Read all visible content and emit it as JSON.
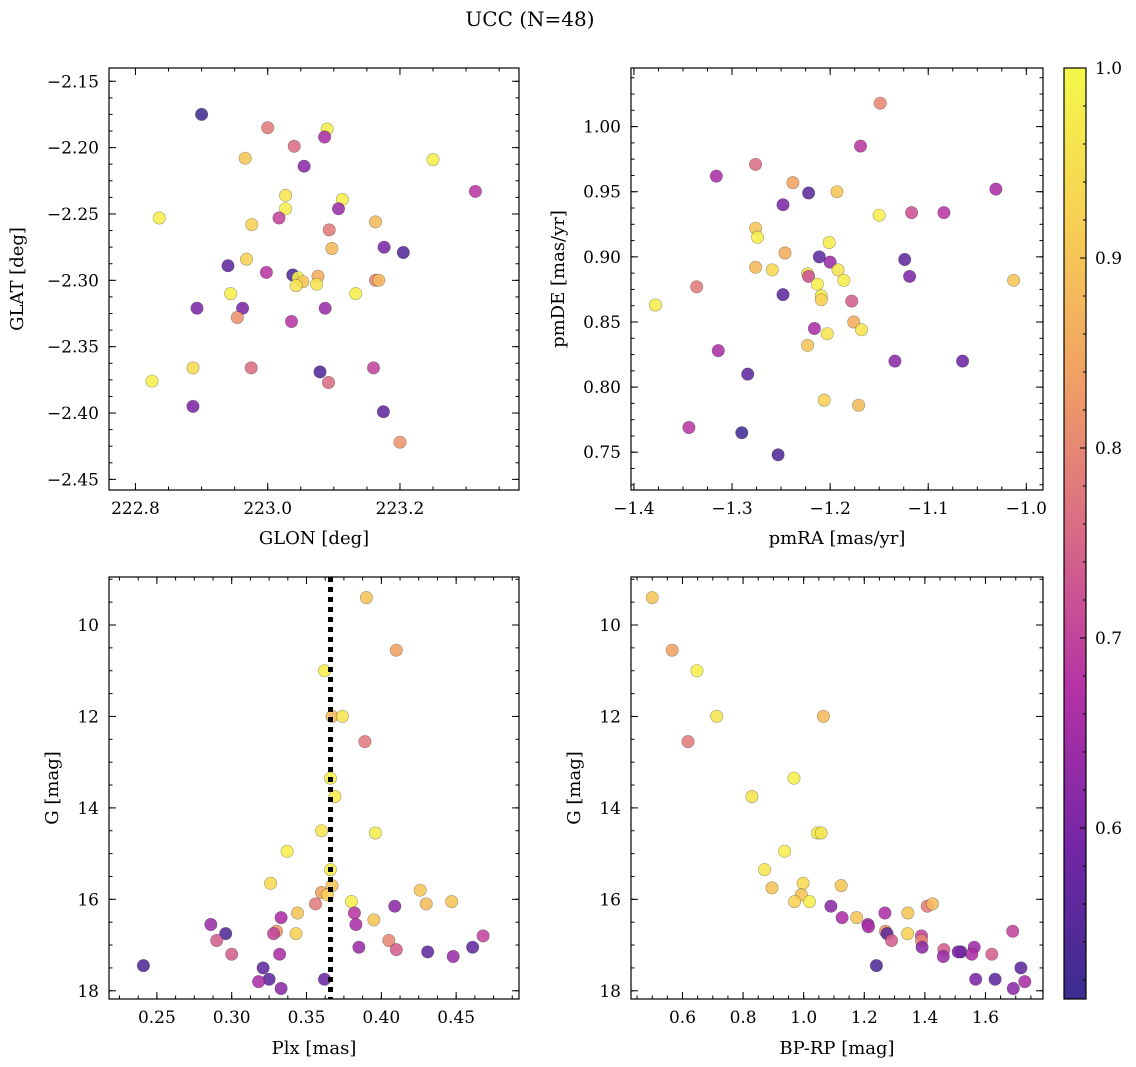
{
  "figure": {
    "title": "UCC (N=48)"
  },
  "colorbar": {
    "range": [
      0.51,
      1.0
    ],
    "ticks": [
      0.6,
      0.7,
      0.8,
      0.9,
      1.0
    ],
    "tick_labels": [
      "0.6",
      "0.7",
      "0.8",
      "0.9",
      "1.0"
    ],
    "colormap": "plasma",
    "cmap_stops": [
      "#3a2d8f",
      "#7526a6",
      "#b532a6",
      "#d96a86",
      "#f0a064",
      "#f7cf54",
      "#f4f84a"
    ]
  },
  "chart_data": [
    {
      "id": "glon-glat",
      "type": "scatter",
      "xlabel": "GLON [deg]",
      "ylabel": "GLAT [deg]",
      "xlim": [
        222.76,
        223.38
      ],
      "ylim": [
        -2.458,
        -2.14
      ],
      "y_inverted": false,
      "xticks": [
        222.8,
        223.0,
        223.2
      ],
      "xtick_labels": [
        "222.8",
        "223.0",
        "223.2"
      ],
      "yticks": [
        -2.45,
        -2.4,
        -2.35,
        -2.3,
        -2.25,
        -2.2,
        -2.15
      ],
      "ytick_labels": [
        "−2.45",
        "−2.40",
        "−2.35",
        "−2.30",
        "−2.25",
        "−2.20",
        "−2.15"
      ],
      "grid": false,
      "points": [
        {
          "x": 222.9,
          "y": -2.175,
          "c": 0.52
        },
        {
          "x": 223.0,
          "y": -2.185,
          "c": 0.78
        },
        {
          "x": 223.09,
          "y": -2.186,
          "c": 0.98
        },
        {
          "x": 223.086,
          "y": -2.192,
          "c": 0.66
        },
        {
          "x": 223.04,
          "y": -2.199,
          "c": 0.76
        },
        {
          "x": 222.966,
          "y": -2.208,
          "c": 0.9
        },
        {
          "x": 223.25,
          "y": -2.209,
          "c": 0.98
        },
        {
          "x": 223.055,
          "y": -2.214,
          "c": 0.62
        },
        {
          "x": 223.314,
          "y": -2.233,
          "c": 0.68
        },
        {
          "x": 223.027,
          "y": -2.236,
          "c": 0.96
        },
        {
          "x": 223.113,
          "y": -2.239,
          "c": 0.98
        },
        {
          "x": 223.107,
          "y": -2.246,
          "c": 0.64
        },
        {
          "x": 223.027,
          "y": -2.246,
          "c": 0.98
        },
        {
          "x": 222.836,
          "y": -2.253,
          "c": 0.98
        },
        {
          "x": 223.017,
          "y": -2.253,
          "c": 0.7
        },
        {
          "x": 223.163,
          "y": -2.256,
          "c": 0.88
        },
        {
          "x": 222.976,
          "y": -2.258,
          "c": 0.92
        },
        {
          "x": 223.093,
          "y": -2.262,
          "c": 0.78
        },
        {
          "x": 223.097,
          "y": -2.276,
          "c": 0.88
        },
        {
          "x": 223.176,
          "y": -2.275,
          "c": 0.6
        },
        {
          "x": 223.205,
          "y": -2.279,
          "c": 0.54
        },
        {
          "x": 222.968,
          "y": -2.284,
          "c": 0.92
        },
        {
          "x": 222.94,
          "y": -2.289,
          "c": 0.56
        },
        {
          "x": 222.998,
          "y": -2.294,
          "c": 0.68
        },
        {
          "x": 223.038,
          "y": -2.296,
          "c": 0.54
        },
        {
          "x": 223.046,
          "y": -2.298,
          "c": 0.98
        },
        {
          "x": 223.076,
          "y": -2.297,
          "c": 0.86
        },
        {
          "x": 223.053,
          "y": -2.301,
          "c": 0.9
        },
        {
          "x": 223.163,
          "y": -2.3,
          "c": 0.8
        },
        {
          "x": 223.168,
          "y": -2.3,
          "c": 0.88
        },
        {
          "x": 223.043,
          "y": -2.304,
          "c": 0.96
        },
        {
          "x": 223.074,
          "y": -2.303,
          "c": 0.96
        },
        {
          "x": 222.962,
          "y": -2.321,
          "c": 0.6
        },
        {
          "x": 222.944,
          "y": -2.31,
          "c": 0.98
        },
        {
          "x": 223.133,
          "y": -2.31,
          "c": 0.98
        },
        {
          "x": 222.893,
          "y": -2.321,
          "c": 0.6
        },
        {
          "x": 223.087,
          "y": -2.321,
          "c": 0.64
        },
        {
          "x": 222.954,
          "y": -2.328,
          "c": 0.82
        },
        {
          "x": 223.036,
          "y": -2.331,
          "c": 0.68
        },
        {
          "x": 222.887,
          "y": -2.366,
          "c": 0.94
        },
        {
          "x": 222.975,
          "y": -2.366,
          "c": 0.76
        },
        {
          "x": 223.16,
          "y": -2.366,
          "c": 0.7
        },
        {
          "x": 223.079,
          "y": -2.369,
          "c": 0.54
        },
        {
          "x": 222.825,
          "y": -2.376,
          "c": 0.98
        },
        {
          "x": 223.092,
          "y": -2.377,
          "c": 0.76
        },
        {
          "x": 222.887,
          "y": -2.395,
          "c": 0.6
        },
        {
          "x": 223.175,
          "y": -2.399,
          "c": 0.56
        },
        {
          "x": 223.2,
          "y": -2.422,
          "c": 0.82
        }
      ]
    },
    {
      "id": "pmra-pmde",
      "type": "scatter",
      "xlabel": "pmRA [mas/yr]",
      "ylabel": "pmDE [mas/yr]",
      "xlim": [
        -1.403,
        -0.983
      ],
      "ylim": [
        0.721,
        1.045
      ],
      "y_inverted": false,
      "xticks": [
        -1.4,
        -1.3,
        -1.2,
        -1.1,
        -1.0
      ],
      "xtick_labels": [
        "−1.4",
        "−1.3",
        "−1.2",
        "−1.1",
        "−1.0"
      ],
      "yticks": [
        0.75,
        0.8,
        0.85,
        0.9,
        0.95,
        1.0
      ],
      "ytick_labels": [
        "0.75",
        "0.80",
        "0.85",
        "0.90",
        "0.95",
        "1.00"
      ],
      "grid": false,
      "points": [
        {
          "x": -1.149,
          "y": 1.018,
          "c": 0.8
        },
        {
          "x": -1.169,
          "y": 0.985,
          "c": 0.68
        },
        {
          "x": -1.316,
          "y": 0.962,
          "c": 0.66
        },
        {
          "x": -1.276,
          "y": 0.971,
          "c": 0.76
        },
        {
          "x": -1.238,
          "y": 0.957,
          "c": 0.84
        },
        {
          "x": -1.222,
          "y": 0.949,
          "c": 0.56
        },
        {
          "x": -1.193,
          "y": 0.95,
          "c": 0.9
        },
        {
          "x": -1.031,
          "y": 0.952,
          "c": 0.66
        },
        {
          "x": -1.248,
          "y": 0.94,
          "c": 0.6
        },
        {
          "x": -1.15,
          "y": 0.932,
          "c": 0.98
        },
        {
          "x": -1.117,
          "y": 0.934,
          "c": 0.72
        },
        {
          "x": -1.084,
          "y": 0.934,
          "c": 0.68
        },
        {
          "x": -1.276,
          "y": 0.922,
          "c": 0.9
        },
        {
          "x": -1.274,
          "y": 0.915,
          "c": 0.98
        },
        {
          "x": -1.201,
          "y": 0.911,
          "c": 0.98
        },
        {
          "x": -1.246,
          "y": 0.903,
          "c": 0.86
        },
        {
          "x": -1.211,
          "y": 0.9,
          "c": 0.56
        },
        {
          "x": -1.2,
          "y": 0.896,
          "c": 0.64
        },
        {
          "x": -1.124,
          "y": 0.898,
          "c": 0.56
        },
        {
          "x": -1.276,
          "y": 0.892,
          "c": 0.88
        },
        {
          "x": -1.259,
          "y": 0.89,
          "c": 0.94
        },
        {
          "x": -1.192,
          "y": 0.89,
          "c": 0.96
        },
        {
          "x": -1.223,
          "y": 0.887,
          "c": 0.96
        },
        {
          "x": -1.222,
          "y": 0.885,
          "c": 0.72
        },
        {
          "x": -1.119,
          "y": 0.885,
          "c": 0.6
        },
        {
          "x": -1.013,
          "y": 0.882,
          "c": 0.9
        },
        {
          "x": -1.186,
          "y": 0.882,
          "c": 0.98
        },
        {
          "x": -1.213,
          "y": 0.879,
          "c": 0.98
        },
        {
          "x": -1.336,
          "y": 0.877,
          "c": 0.78
        },
        {
          "x": -1.248,
          "y": 0.871,
          "c": 0.56
        },
        {
          "x": -1.209,
          "y": 0.87,
          "c": 0.98
        },
        {
          "x": -1.209,
          "y": 0.867,
          "c": 0.92
        },
        {
          "x": -1.178,
          "y": 0.866,
          "c": 0.74
        },
        {
          "x": -1.378,
          "y": 0.863,
          "c": 0.98
        },
        {
          "x": -1.176,
          "y": 0.85,
          "c": 0.86
        },
        {
          "x": -1.216,
          "y": 0.845,
          "c": 0.66
        },
        {
          "x": -1.168,
          "y": 0.844,
          "c": 0.96
        },
        {
          "x": -1.203,
          "y": 0.841,
          "c": 0.96
        },
        {
          "x": -1.223,
          "y": 0.832,
          "c": 0.9
        },
        {
          "x": -1.314,
          "y": 0.828,
          "c": 0.66
        },
        {
          "x": -1.134,
          "y": 0.82,
          "c": 0.62
        },
        {
          "x": -1.065,
          "y": 0.82,
          "c": 0.58
        },
        {
          "x": -1.284,
          "y": 0.81,
          "c": 0.56
        },
        {
          "x": -1.206,
          "y": 0.79,
          "c": 0.92
        },
        {
          "x": -1.171,
          "y": 0.786,
          "c": 0.88
        },
        {
          "x": -1.344,
          "y": 0.769,
          "c": 0.68
        },
        {
          "x": -1.29,
          "y": 0.765,
          "c": 0.52
        },
        {
          "x": -1.253,
          "y": 0.748,
          "c": 0.54
        }
      ]
    },
    {
      "id": "plx-g",
      "type": "scatter",
      "xlabel": "Plx [mas]",
      "ylabel": "G [mag]",
      "xlim": [
        0.218,
        0.492
      ],
      "ylim": [
        18.18,
        8.95
      ],
      "y_inverted": true,
      "xticks": [
        0.25,
        0.3,
        0.35,
        0.4,
        0.45
      ],
      "xtick_labels": [
        "0.25",
        "0.30",
        "0.35",
        "0.40",
        "0.45"
      ],
      "yticks": [
        10,
        12,
        14,
        16,
        18
      ],
      "ytick_labels": [
        "10",
        "12",
        "14",
        "16",
        "18"
      ],
      "grid": false,
      "vline": {
        "x": 0.366,
        "style": "dotted"
      },
      "points": [
        {
          "x": 0.39,
          "y": 9.4,
          "c": 0.9
        },
        {
          "x": 0.41,
          "y": 10.55,
          "c": 0.84
        },
        {
          "x": 0.362,
          "y": 11.0,
          "c": 0.98
        },
        {
          "x": 0.367,
          "y": 12.0,
          "c": 0.88
        },
        {
          "x": 0.374,
          "y": 12.0,
          "c": 0.96
        },
        {
          "x": 0.389,
          "y": 12.55,
          "c": 0.78
        },
        {
          "x": 0.366,
          "y": 13.35,
          "c": 0.98
        },
        {
          "x": 0.369,
          "y": 13.75,
          "c": 0.98
        },
        {
          "x": 0.36,
          "y": 14.5,
          "c": 0.96
        },
        {
          "x": 0.396,
          "y": 14.55,
          "c": 0.98
        },
        {
          "x": 0.337,
          "y": 14.95,
          "c": 0.98
        },
        {
          "x": 0.366,
          "y": 15.35,
          "c": 0.98
        },
        {
          "x": 0.326,
          "y": 15.65,
          "c": 0.94
        },
        {
          "x": 0.367,
          "y": 15.7,
          "c": 0.9
        },
        {
          "x": 0.36,
          "y": 15.85,
          "c": 0.84
        },
        {
          "x": 0.364,
          "y": 15.9,
          "c": 0.92
        },
        {
          "x": 0.426,
          "y": 15.8,
          "c": 0.9
        },
        {
          "x": 0.38,
          "y": 16.05,
          "c": 0.98
        },
        {
          "x": 0.43,
          "y": 16.1,
          "c": 0.88
        },
        {
          "x": 0.447,
          "y": 16.05,
          "c": 0.9
        },
        {
          "x": 0.356,
          "y": 16.1,
          "c": 0.78
        },
        {
          "x": 0.409,
          "y": 16.15,
          "c": 0.62
        },
        {
          "x": 0.344,
          "y": 16.3,
          "c": 0.9
        },
        {
          "x": 0.382,
          "y": 16.3,
          "c": 0.68
        },
        {
          "x": 0.333,
          "y": 16.4,
          "c": 0.66
        },
        {
          "x": 0.395,
          "y": 16.45,
          "c": 0.9
        },
        {
          "x": 0.286,
          "y": 16.55,
          "c": 0.64
        },
        {
          "x": 0.383,
          "y": 16.55,
          "c": 0.66
        },
        {
          "x": 0.33,
          "y": 16.7,
          "c": 0.82
        },
        {
          "x": 0.328,
          "y": 16.75,
          "c": 0.7
        },
        {
          "x": 0.296,
          "y": 16.75,
          "c": 0.54
        },
        {
          "x": 0.343,
          "y": 16.75,
          "c": 0.92
        },
        {
          "x": 0.468,
          "y": 16.8,
          "c": 0.7
        },
        {
          "x": 0.29,
          "y": 16.9,
          "c": 0.74
        },
        {
          "x": 0.405,
          "y": 16.9,
          "c": 0.8
        },
        {
          "x": 0.385,
          "y": 17.05,
          "c": 0.64
        },
        {
          "x": 0.461,
          "y": 17.05,
          "c": 0.56
        },
        {
          "x": 0.41,
          "y": 17.1,
          "c": 0.74
        },
        {
          "x": 0.431,
          "y": 17.15,
          "c": 0.56
        },
        {
          "x": 0.3,
          "y": 17.2,
          "c": 0.74
        },
        {
          "x": 0.332,
          "y": 17.2,
          "c": 0.66
        },
        {
          "x": 0.448,
          "y": 17.25,
          "c": 0.64
        },
        {
          "x": 0.241,
          "y": 17.45,
          "c": 0.54
        },
        {
          "x": 0.321,
          "y": 17.5,
          "c": 0.56
        },
        {
          "x": 0.325,
          "y": 17.75,
          "c": 0.56
        },
        {
          "x": 0.318,
          "y": 17.8,
          "c": 0.66
        },
        {
          "x": 0.362,
          "y": 17.75,
          "c": 0.58
        },
        {
          "x": 0.333,
          "y": 17.95,
          "c": 0.62
        }
      ]
    },
    {
      "id": "bprp-g",
      "type": "scatter",
      "xlabel": "BP-RP [mag]",
      "ylabel": "G [mag]",
      "xlim": [
        0.43,
        1.79
      ],
      "ylim": [
        18.18,
        8.95
      ],
      "y_inverted": true,
      "xticks": [
        0.6,
        0.8,
        1.0,
        1.2,
        1.4,
        1.6
      ],
      "xtick_labels": [
        "0.6",
        "0.8",
        "1.0",
        "1.2",
        "1.4",
        "1.6"
      ],
      "yticks": [
        10,
        12,
        14,
        16,
        18
      ],
      "ytick_labels": [
        "10",
        "12",
        "14",
        "16",
        "18"
      ],
      "grid": false,
      "points": [
        {
          "x": 0.5,
          "y": 9.4,
          "c": 0.9
        },
        {
          "x": 0.566,
          "y": 10.55,
          "c": 0.84
        },
        {
          "x": 0.648,
          "y": 11.0,
          "c": 0.98
        },
        {
          "x": 0.713,
          "y": 12.0,
          "c": 0.96
        },
        {
          "x": 0.618,
          "y": 12.55,
          "c": 0.78
        },
        {
          "x": 1.065,
          "y": 12.0,
          "c": 0.88
        },
        {
          "x": 0.968,
          "y": 13.35,
          "c": 0.98
        },
        {
          "x": 0.829,
          "y": 13.75,
          "c": 0.96
        },
        {
          "x": 1.046,
          "y": 14.55,
          "c": 0.98
        },
        {
          "x": 1.058,
          "y": 14.55,
          "c": 0.96
        },
        {
          "x": 0.937,
          "y": 14.95,
          "c": 0.98
        },
        {
          "x": 0.871,
          "y": 15.35,
          "c": 0.96
        },
        {
          "x": 0.895,
          "y": 15.75,
          "c": 0.9
        },
        {
          "x": 0.998,
          "y": 15.65,
          "c": 0.94
        },
        {
          "x": 1.124,
          "y": 15.7,
          "c": 0.9
        },
        {
          "x": 0.992,
          "y": 15.9,
          "c": 0.9
        },
        {
          "x": 0.97,
          "y": 16.05,
          "c": 0.92
        },
        {
          "x": 1.019,
          "y": 16.05,
          "c": 0.98
        },
        {
          "x": 1.09,
          "y": 16.15,
          "c": 0.62
        },
        {
          "x": 1.408,
          "y": 16.15,
          "c": 0.78
        },
        {
          "x": 1.425,
          "y": 16.1,
          "c": 0.88
        },
        {
          "x": 1.127,
          "y": 16.4,
          "c": 0.66
        },
        {
          "x": 1.175,
          "y": 16.4,
          "c": 0.9
        },
        {
          "x": 1.268,
          "y": 16.3,
          "c": 0.66
        },
        {
          "x": 1.344,
          "y": 16.3,
          "c": 0.9
        },
        {
          "x": 1.212,
          "y": 16.55,
          "c": 0.64
        },
        {
          "x": 1.214,
          "y": 16.6,
          "c": 0.66
        },
        {
          "x": 1.27,
          "y": 16.7,
          "c": 0.82
        },
        {
          "x": 1.275,
          "y": 16.75,
          "c": 0.56
        },
        {
          "x": 1.343,
          "y": 16.75,
          "c": 0.92
        },
        {
          "x": 1.389,
          "y": 16.8,
          "c": 0.7
        },
        {
          "x": 1.389,
          "y": 16.9,
          "c": 0.8
        },
        {
          "x": 1.29,
          "y": 16.9,
          "c": 0.74
        },
        {
          "x": 1.69,
          "y": 16.7,
          "c": 0.7
        },
        {
          "x": 1.391,
          "y": 17.05,
          "c": 0.62
        },
        {
          "x": 1.463,
          "y": 17.1,
          "c": 0.74
        },
        {
          "x": 1.519,
          "y": 17.15,
          "c": 0.56
        },
        {
          "x": 1.563,
          "y": 17.05,
          "c": 0.64
        },
        {
          "x": 1.555,
          "y": 17.2,
          "c": 0.66
        },
        {
          "x": 1.621,
          "y": 17.2,
          "c": 0.74
        },
        {
          "x": 1.461,
          "y": 17.25,
          "c": 0.64
        },
        {
          "x": 1.24,
          "y": 17.45,
          "c": 0.54
        },
        {
          "x": 1.717,
          "y": 17.5,
          "c": 0.56
        },
        {
          "x": 1.568,
          "y": 17.75,
          "c": 0.6
        },
        {
          "x": 1.632,
          "y": 17.75,
          "c": 0.56
        },
        {
          "x": 1.73,
          "y": 17.8,
          "c": 0.66
        },
        {
          "x": 1.692,
          "y": 17.95,
          "c": 0.62
        },
        {
          "x": 1.51,
          "y": 17.15,
          "c": 0.6
        }
      ]
    }
  ]
}
